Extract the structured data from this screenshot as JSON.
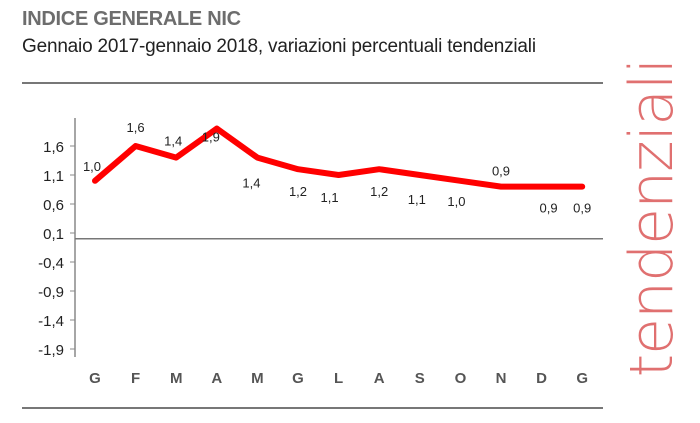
{
  "title": "INDICE GENERALE NIC",
  "subtitle": "Gennaio 2017-gennaio 2018, variazioni percentuali tendenziali",
  "side_label": "tendenziali",
  "colors": {
    "series": "#ff0000",
    "side_label": "#e07070",
    "axis": "#777777"
  },
  "chart_data": {
    "type": "line",
    "categories": [
      "G",
      "F",
      "M",
      "A",
      "M",
      "G",
      "L",
      "A",
      "S",
      "O",
      "N",
      "D",
      "G"
    ],
    "values": [
      1.0,
      1.6,
      1.4,
      1.9,
      1.4,
      1.2,
      1.1,
      1.2,
      1.1,
      1.0,
      0.9,
      0.9,
      0.9
    ],
    "data_labels": [
      "1,0",
      "1,6",
      "1,4",
      "1,9",
      "1,4",
      "1,2",
      "1,1",
      "1,2",
      "1,1",
      "1,0",
      "0,9",
      "0,9",
      "0,9"
    ],
    "yticks": [
      1.6,
      1.1,
      0.6,
      0.1,
      -0.4,
      -0.9,
      -1.4,
      -1.9
    ],
    "ytick_labels": [
      "1,6",
      "1,1",
      "0,6",
      "0,1",
      "-0,4",
      "-0,9",
      "-1,4",
      "-1,9"
    ],
    "ylim": [
      -1.9,
      1.9
    ],
    "grid": false,
    "legend": "none"
  }
}
